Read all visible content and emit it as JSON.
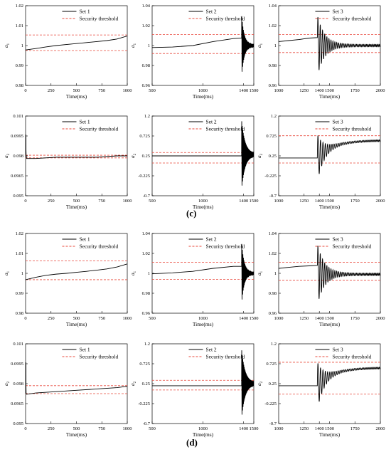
{
  "figure": {
    "label_c": "(c)",
    "label_d": "(d)"
  },
  "legend_threshold": "Security threshold",
  "colors": {
    "signal": "#000000",
    "threshold": "#e8473a"
  },
  "chart_data": [
    {
      "id": "c11",
      "type": "line",
      "ylabel": "a",
      "ysub": "1",
      "xlabel": "Time(ms)",
      "xlim": [
        0,
        1000
      ],
      "ylim": [
        0.98,
        1.02
      ],
      "xticks": [
        0,
        250,
        500,
        750,
        1000
      ],
      "yticks": [
        "0.98",
        "0.99",
        "1",
        "1.01",
        "1.02"
      ],
      "series": [
        {
          "name": "Set 1",
          "x": [
            0,
            100,
            200,
            300,
            400,
            500,
            600,
            700,
            800,
            900,
            1000
          ],
          "y": [
            0.9978,
            0.9985,
            0.9993,
            1.0,
            1.0005,
            1.001,
            1.0015,
            1.002,
            1.0025,
            1.0033,
            1.0048
          ]
        }
      ],
      "thresholds": [
        1.0053,
        0.9975
      ],
      "thresholdLabel": "Security threshold"
    },
    {
      "id": "c12",
      "type": "line",
      "ylabel": "a",
      "ysub": "1",
      "xlabel": "Time(ms)",
      "xlim": [
        500,
        1500
      ],
      "ylim": [
        0.96,
        1.04
      ],
      "xticks": [
        500,
        1000,
        1400,
        1500
      ],
      "xtickLabels": [
        "500",
        "1000",
        "1400",
        "1500"
      ],
      "yticks": [
        "0.96",
        "0.98",
        "1",
        "1.02",
        "1.04"
      ],
      "series": [
        {
          "name": "Set 2",
          "x": [
            500,
            700,
            900,
            1100,
            1300,
            1380
          ],
          "y": [
            0.998,
            0.9985,
            1.0,
            1.004,
            1.007,
            1.0075
          ],
          "osc": {
            "t0": 1380,
            "t1": 1500,
            "base": 1.0,
            "amp0": 0.03,
            "decay": 1.2,
            "cycles": 20
          }
        }
      ],
      "thresholds": [
        1.011,
        0.992
      ],
      "thresholdLabel": "Security threshold"
    },
    {
      "id": "c13",
      "type": "line",
      "ylabel": "a",
      "ysub": "1",
      "xlabel": "Time(ms)",
      "xlim": [
        1000,
        2000
      ],
      "ylim": [
        0.96,
        1.04
      ],
      "xticks": [
        1000,
        1250,
        1400,
        1500,
        1750,
        2000
      ],
      "yticks": [
        "0.96",
        "0.98",
        "1",
        "1.02",
        "1.04"
      ],
      "series": [
        {
          "name": "Set 3",
          "x": [
            1000,
            1100,
            1200,
            1300,
            1380
          ],
          "y": [
            1.004,
            1.005,
            1.006,
            1.0075,
            1.008
          ],
          "osc": {
            "t0": 1380,
            "t1": 2000,
            "base": 1.0,
            "amp0": 0.03,
            "decay": 2.2,
            "cycles": 26
          }
        }
      ],
      "thresholds": [
        1.011,
        0.993
      ],
      "thresholdLabel": "Security threshold"
    },
    {
      "id": "c21",
      "type": "line",
      "ylabel": "a",
      "ysub": "2",
      "xlabel": "Time(ms)",
      "xlim": [
        0,
        1000
      ],
      "ylim": [
        0.095,
        0.101
      ],
      "xticks": [
        0,
        250,
        500,
        750,
        1000
      ],
      "yticks": [
        "0.095",
        "0.0965",
        "0.098",
        "0.0995",
        "0.101"
      ],
      "series": [
        {
          "name": "Set 1",
          "x": [
            0,
            5,
            10,
            100,
            300,
            500,
            700,
            900,
            1000
          ],
          "y": [
            0.0996,
            0.0981,
            0.0978,
            0.0978,
            0.0979,
            0.0979,
            0.0979,
            0.098,
            0.098
          ],
          "spike": {
            "x": 0,
            "y": 0.0996
          }
        }
      ],
      "thresholds": [
        0.09805,
        0.09785
      ],
      "thresholdLabel": "Security threshold"
    },
    {
      "id": "c22",
      "type": "line",
      "ylabel": "a",
      "ysub": "2",
      "xlabel": "Time(ms)",
      "xlim": [
        500,
        1500
      ],
      "ylim": [
        -0.7,
        1.2
      ],
      "xticks": [
        500,
        1000,
        1400,
        1500
      ],
      "yticks": [
        "-0.7",
        "-0.225",
        "0.25",
        "0.725",
        "1.2"
      ],
      "series": [
        {
          "name": "Set 2",
          "x": [
            500,
            900,
            1380
          ],
          "y": [
            0.25,
            0.25,
            0.25
          ],
          "osc": {
            "t0": 1380,
            "t1": 1500,
            "base": 0.28,
            "amp0": 0.8,
            "decay": 0.9,
            "cycles": 22
          }
        }
      ],
      "thresholds": [
        0.33,
        0.08
      ],
      "thresholdLabel": "Security threshold"
    },
    {
      "id": "c23",
      "type": "line",
      "ylabel": "a",
      "ysub": "2",
      "xlabel": "Time(ms)",
      "xlim": [
        1000,
        2000
      ],
      "ylim": [
        -0.7,
        1.2
      ],
      "xticks": [
        1000,
        1250,
        1400,
        1500,
        1750,
        2000
      ],
      "yticks": [
        "-0.7",
        "-0.225",
        "0.25",
        "0.725",
        "1.2"
      ],
      "series": [
        {
          "name": "Set 3",
          "x": [
            1000,
            1200,
            1380
          ],
          "y": [
            0.2,
            0.2,
            0.2
          ],
          "osc": {
            "t0": 1380,
            "t1": 2000,
            "base": 0.62,
            "amp0": 0.55,
            "decay": 2.5,
            "cycles": 24,
            "rise": true
          }
        }
      ],
      "thresholds": [
        0.73,
        0.08
      ],
      "thresholdLabel": "Security threshold"
    },
    {
      "id": "d11",
      "type": "line",
      "ylabel": "a",
      "ysub": "1",
      "xlabel": "Time(ms)",
      "xlim": [
        0,
        1000
      ],
      "ylim": [
        0.98,
        1.02
      ],
      "xticks": [
        0,
        250,
        500,
        750,
        1000
      ],
      "yticks": [
        "0.98",
        "0.99",
        "1",
        "1.01",
        "1.02"
      ],
      "series": [
        {
          "name": "Set 1",
          "x": [
            0,
            100,
            200,
            300,
            400,
            500,
            600,
            700,
            800,
            900,
            1000
          ],
          "y": [
            0.9968,
            0.998,
            0.999,
            0.9996,
            1.0,
            1.0005,
            1.001,
            1.0016,
            1.0022,
            1.0032,
            1.0047
          ]
        }
      ],
      "thresholds": [
        1.0063,
        0.9968
      ],
      "thresholdLabel": "Security threshold"
    },
    {
      "id": "d12",
      "type": "line",
      "ylabel": "a",
      "ysub": "1",
      "xlabel": "Time(ms)",
      "xlim": [
        500,
        1500
      ],
      "ylim": [
        0.96,
        1.04
      ],
      "xticks": [
        500,
        1000,
        1400,
        1500
      ],
      "yticks": [
        "0.96",
        "0.98",
        "1",
        "1.02",
        "1.04"
      ],
      "series": [
        {
          "name": "Set 2",
          "x": [
            500,
            700,
            900,
            1100,
            1300,
            1380
          ],
          "y": [
            0.9995,
            1.0005,
            1.002,
            1.005,
            1.007,
            1.007
          ],
          "osc": {
            "t0": 1380,
            "t1": 1500,
            "base": 1.0,
            "amp0": 0.03,
            "decay": 1.2,
            "cycles": 20
          }
        }
      ],
      "thresholds": [
        1.011,
        0.994
      ],
      "thresholdLabel": "Security threshold"
    },
    {
      "id": "d13",
      "type": "line",
      "ylabel": "a",
      "ysub": "1",
      "xlabel": "Time(ms)",
      "xlim": [
        1000,
        2000
      ],
      "ylim": [
        0.96,
        1.04
      ],
      "xticks": [
        1000,
        1250,
        1400,
        1500,
        1750,
        2000
      ],
      "yticks": [
        "0.96",
        "0.98",
        "1",
        "1.02",
        "1.04"
      ],
      "series": [
        {
          "name": "Set 3",
          "x": [
            1000,
            1100,
            1200,
            1300,
            1380
          ],
          "y": [
            1.005,
            1.006,
            1.007,
            1.0075,
            1.008
          ],
          "osc": {
            "t0": 1380,
            "t1": 2000,
            "base": 0.999,
            "amp0": 0.03,
            "decay": 2.2,
            "cycles": 26
          }
        }
      ],
      "thresholds": [
        1.011,
        0.993
      ],
      "thresholdLabel": "Security threshold"
    },
    {
      "id": "d21",
      "type": "line",
      "ylabel": "a",
      "ysub": "2",
      "xlabel": "Time(ms)",
      "xlim": [
        0,
        1000
      ],
      "ylim": [
        0.095,
        0.101
      ],
      "xticks": [
        0,
        250,
        500,
        750,
        1000
      ],
      "yticks": [
        "0.095",
        "0.0965",
        "0.098",
        "0.0995",
        "0.101"
      ],
      "series": [
        {
          "name": "Set 1",
          "x": [
            0,
            5,
            10,
            100,
            300,
            500,
            700,
            900,
            1000
          ],
          "y": [
            0.0996,
            0.0973,
            0.0972,
            0.0973,
            0.0974,
            0.0975,
            0.0976,
            0.0977,
            0.0978
          ],
          "spike": {
            "x": 0,
            "y": 0.0996
          }
        }
      ],
      "thresholds": [
        0.09785,
        0.09725
      ],
      "thresholdLabel": "Security threshold"
    },
    {
      "id": "d22",
      "type": "line",
      "ylabel": "a",
      "ysub": "2",
      "xlabel": "Time(ms)",
      "xlim": [
        500,
        1500
      ],
      "ylim": [
        -0.7,
        1.2
      ],
      "xticks": [
        500,
        1000,
        1400,
        1500
      ],
      "yticks": [
        "-0.7",
        "-0.225",
        "0.25",
        "0.725",
        "1.2"
      ],
      "series": [
        {
          "name": "Set 2",
          "x": [
            500,
            900,
            1380
          ],
          "y": [
            0.2,
            0.2,
            0.2
          ],
          "osc": {
            "t0": 1380,
            "t1": 1500,
            "base": 0.25,
            "amp0": 0.8,
            "decay": 0.9,
            "cycles": 22
          }
        }
      ],
      "thresholds": [
        0.33,
        0.1
      ],
      "thresholdLabel": "Security threshold"
    },
    {
      "id": "d23",
      "type": "line",
      "ylabel": "a",
      "ysub": "2",
      "xlabel": "Time(ms)",
      "xlim": [
        1000,
        2000
      ],
      "ylim": [
        -0.7,
        1.2
      ],
      "xticks": [
        1000,
        1250,
        1400,
        1500,
        1750,
        2000
      ],
      "yticks": [
        "-0.7",
        "-0.225",
        "0.25",
        "0.725",
        "1.2"
      ],
      "series": [
        {
          "name": "Set 3",
          "x": [
            1000,
            1200,
            1380
          ],
          "y": [
            0.2,
            0.2,
            0.2
          ],
          "osc": {
            "t0": 1380,
            "t1": 2000,
            "base": 0.63,
            "amp0": 0.55,
            "decay": 2.5,
            "cycles": 24,
            "rise": true
          }
        }
      ],
      "thresholds": [
        0.76,
        0.0
      ],
      "thresholdLabel": "Security threshold"
    }
  ]
}
